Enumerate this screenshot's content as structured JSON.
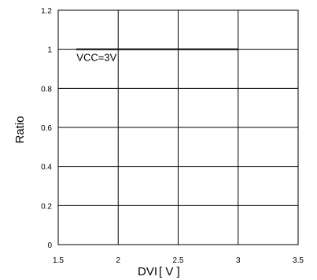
{
  "chart_data": {
    "type": "line",
    "title": "",
    "xlabel": "DVI",
    "xlabel_unit": "[ V ]",
    "ylabel": "Ratio",
    "xlim": [
      1.5,
      3.5
    ],
    "ylim": [
      0,
      1.2
    ],
    "x_ticks": [
      "1.5",
      "2",
      "2.5",
      "3",
      "3.5"
    ],
    "y_ticks": [
      "0",
      "0.2",
      "0.4",
      "0.6",
      "0.8",
      "1",
      "1.2"
    ],
    "grid": true,
    "legend": "none",
    "series": [
      {
        "x": [
          1.65,
          3.0
        ],
        "y": [
          1.0,
          1.0
        ],
        "color": "#000000"
      }
    ],
    "annotations": [
      {
        "text": "VCC=3V",
        "x": 1.62,
        "y": 0.96
      }
    ]
  }
}
